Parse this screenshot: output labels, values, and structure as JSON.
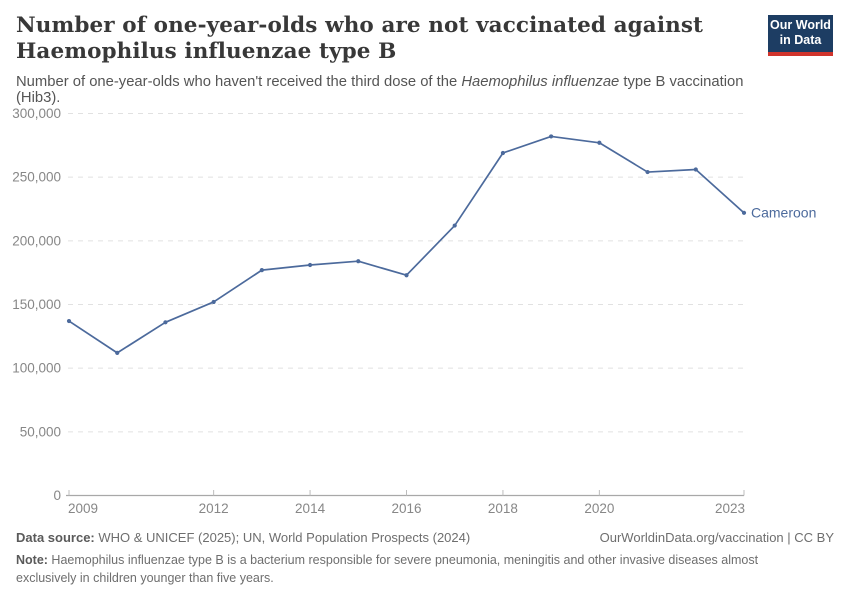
{
  "header": {
    "title_lines": [
      "Number of one-year-olds who are not vaccinated against",
      "Haemophilus influenzae type B"
    ],
    "subtitle": {
      "pre": "Number of one-year-olds who haven't received the third dose of the ",
      "italic": "Haemophilus influenzae",
      "post": " type B vaccination (Hib3)."
    }
  },
  "logo": {
    "line1": "Our World",
    "line2": "in Data",
    "bg_color": "#1d3d63",
    "stripe_color": "#d0342c"
  },
  "chart_data": {
    "type": "line",
    "title": "Number of one-year-olds who are not vaccinated against Haemophilus influenzae type B",
    "x": [
      2009,
      2010,
      2011,
      2012,
      2013,
      2014,
      2015,
      2016,
      2017,
      2018,
      2019,
      2020,
      2021,
      2022,
      2023
    ],
    "series": [
      {
        "name": "Cameroon",
        "color": "#4c6a9c",
        "values": [
          137000,
          112000,
          136000,
          152000,
          177000,
          181000,
          184000,
          173000,
          212000,
          269000,
          282000,
          277000,
          254000,
          256000,
          222000
        ]
      }
    ],
    "xlim": [
      2009,
      2023
    ],
    "ylim": [
      0,
      300000
    ],
    "xticks": [
      2009,
      2012,
      2014,
      2016,
      2018,
      2020,
      2023
    ],
    "yticks": [
      0,
      50000,
      100000,
      150000,
      200000,
      250000,
      300000
    ],
    "xlabel": "",
    "ylabel": "",
    "grid": "horizontal-dashed",
    "legend": "end-of-line-label",
    "grid_color": "#e1e1e1",
    "axis_color": "#a8a8a8"
  },
  "footer": {
    "datasource_label": "Data source:",
    "datasource_text": " WHO & UNICEF (2025); UN, World Population Prospects (2024)",
    "attribution_url": "OurWorldinData.org/vaccination",
    "attribution_suffix": " | CC BY",
    "note_label": "Note:",
    "note_text": " Haemophilus influenzae type B is a bacterium responsible for severe pneumonia, meningitis and other invasive diseases almost exclusively in children younger than five years."
  }
}
